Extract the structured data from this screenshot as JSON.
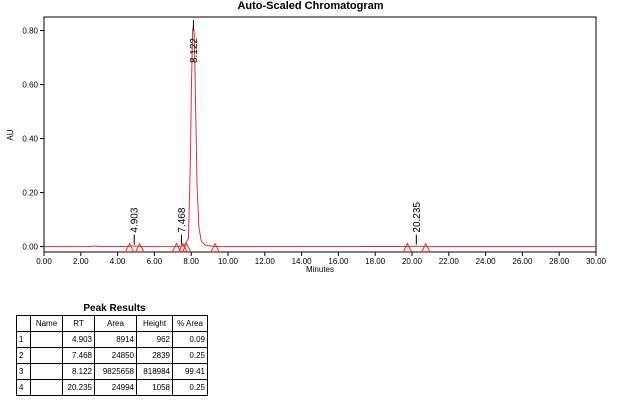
{
  "chart_data": {
    "type": "line",
    "title": "Auto-Scaled Chromatogram",
    "xlabel": "Minutes",
    "ylabel": "AU",
    "xlim": [
      0,
      30
    ],
    "ylim": [
      -0.02,
      0.85
    ],
    "x_ticks": [
      "0.00",
      "2.00",
      "4.00",
      "6.00",
      "8.00",
      "10.00",
      "12.00",
      "14.00",
      "16.00",
      "18.00",
      "20.00",
      "22.00",
      "24.00",
      "26.00",
      "28.00",
      "30.00"
    ],
    "y_ticks": [
      "0.00",
      "0.20",
      "0.40",
      "0.60",
      "0.80"
    ],
    "grid": false,
    "line_color": "#e03030",
    "series": [
      {
        "values": [
          [
            0,
            0.0
          ],
          [
            2.5,
            0.0005
          ],
          [
            2.8,
            0.002
          ],
          [
            3.1,
            0.0
          ],
          [
            4.2,
            0.0005
          ],
          [
            4.65,
            0.0008
          ],
          [
            4.8,
            0.003
          ],
          [
            4.903,
            0.00096
          ],
          [
            5.0,
            0.002
          ],
          [
            5.2,
            0.0
          ],
          [
            7.3,
            0.0005
          ],
          [
            7.468,
            0.0028
          ],
          [
            7.6,
            0.0015
          ],
          [
            7.85,
            0.03
          ],
          [
            7.95,
            0.3
          ],
          [
            8.02,
            0.62
          ],
          [
            8.08,
            0.8
          ],
          [
            8.122,
            0.819
          ],
          [
            8.17,
            0.78
          ],
          [
            8.24,
            0.52
          ],
          [
            8.32,
            0.22
          ],
          [
            8.42,
            0.07
          ],
          [
            8.55,
            0.02
          ],
          [
            8.75,
            0.006
          ],
          [
            9.2,
            0.001
          ],
          [
            9.8,
            0.0
          ],
          [
            19.8,
            0.0005
          ],
          [
            20.235,
            0.00106
          ],
          [
            20.5,
            0.0007
          ],
          [
            20.9,
            0.0
          ],
          [
            30,
            0.0
          ]
        ]
      }
    ],
    "peak_labels": [
      {
        "rt": 4.903,
        "label": "4.903"
      },
      {
        "rt": 7.468,
        "label": "7.468"
      },
      {
        "rt": 8.122,
        "label": "8.122"
      },
      {
        "rt": 20.235,
        "label": "20.235"
      }
    ],
    "integration_markers": [
      4.65,
      5.2,
      7.2,
      7.55,
      7.75,
      9.3,
      19.75,
      20.75
    ]
  },
  "peak_results": {
    "title": "Peak Results",
    "columns": [
      "",
      "Name",
      "RT",
      "Area",
      "Height",
      "% Area"
    ],
    "rows": [
      {
        "index": "1",
        "name": "",
        "rt": "4.903",
        "area": "8914",
        "height": "962",
        "pct_area": "0.09"
      },
      {
        "index": "2",
        "name": "",
        "rt": "7.468",
        "area": "24850",
        "height": "2839",
        "pct_area": "0.25"
      },
      {
        "index": "3",
        "name": "",
        "rt": "8.122",
        "area": "9825658",
        "height": "818984",
        "pct_area": "99.41"
      },
      {
        "index": "4",
        "name": "",
        "rt": "20.235",
        "area": "24994",
        "height": "1058",
        "pct_area": "0.25"
      }
    ]
  }
}
